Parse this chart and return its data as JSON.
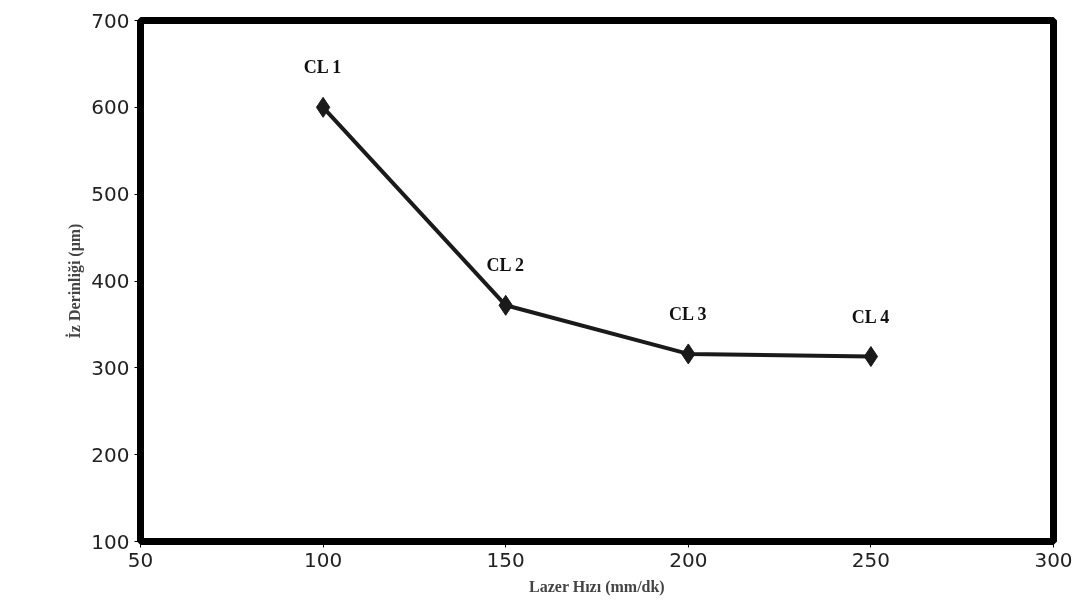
{
  "chart_data": {
    "type": "line",
    "xlabel": "Lazer Hızı (mm/dk)",
    "ylabel": "İz Derinliği (μm)",
    "x": [
      100,
      150,
      200,
      250
    ],
    "series": [
      {
        "color": "#1a1a1a",
        "values": [
          600,
          372,
          316,
          313
        ]
      }
    ],
    "marker": "diamond",
    "line_style": "solid",
    "grid": false,
    "xlim": [
      50,
      300
    ],
    "ylim": [
      100,
      700
    ],
    "xticks": [
      50,
      100,
      150,
      200,
      250,
      300
    ],
    "yticks": [
      100,
      200,
      300,
      400,
      500,
      600,
      700
    ],
    "annotations": [
      {
        "text": "CL 1",
        "x": 100,
        "y": 600
      },
      {
        "text": "CL 2",
        "x": 150,
        "y": 372
      },
      {
        "text": "CL 3",
        "x": 200,
        "y": 316
      },
      {
        "text": "CL 4",
        "x": 250,
        "y": 313
      }
    ]
  }
}
